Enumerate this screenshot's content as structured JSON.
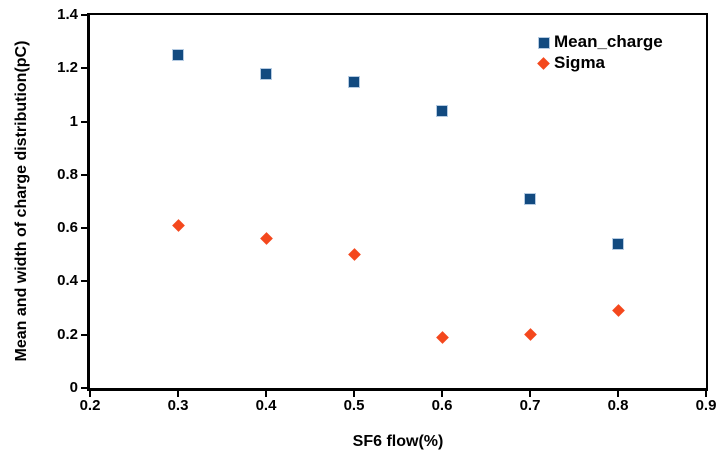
{
  "chart_data": {
    "type": "scatter",
    "title": "",
    "xlabel": "SF6 flow(%)",
    "ylabel": "Mean and width of charge distribution(pC)",
    "xlim": [
      0.2,
      0.9
    ],
    "ylim": [
      0,
      1.4
    ],
    "x_tick_values": [
      0.2,
      0.3,
      0.4,
      0.5,
      0.6,
      0.7,
      0.8,
      0.9
    ],
    "x_tick_labels": [
      "0.2",
      "0.3",
      "0.4",
      "0.5",
      "0.6",
      "0.7",
      "0.8",
      "0.9"
    ],
    "y_tick_values": [
      0,
      0.2,
      0.4,
      0.6,
      0.8,
      1,
      1.2,
      1.4
    ],
    "y_tick_labels": [
      "0",
      "0.2",
      "0.4",
      "0.6",
      "0.8",
      "1",
      "1.2",
      "1.4"
    ],
    "grid": false,
    "legend_position": "top-right-inside",
    "x": [
      0.3,
      0.4,
      0.5,
      0.6,
      0.7,
      0.8
    ],
    "series": [
      {
        "name": "Mean_charge",
        "marker": "square",
        "color": "#124a80",
        "marker_edge_color": "#b5cbe2",
        "values": [
          1.25,
          1.18,
          1.15,
          1.04,
          0.71,
          0.54
        ]
      },
      {
        "name": "Sigma",
        "marker": "diamond",
        "color": "#f4481d",
        "marker_edge_color": "#f4481d",
        "values": [
          0.61,
          0.56,
          0.5,
          0.19,
          0.2,
          0.29
        ]
      }
    ],
    "axis_color": "#000000",
    "background_color": "#ffffff"
  }
}
